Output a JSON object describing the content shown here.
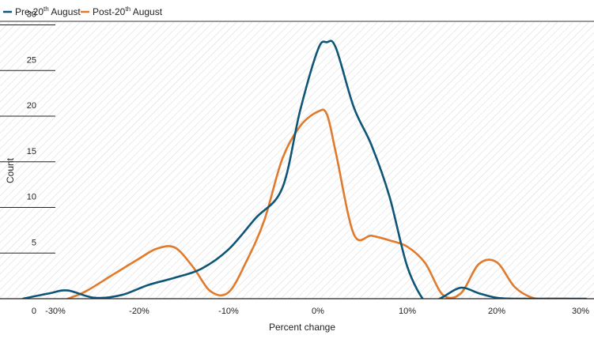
{
  "chart_data": {
    "type": "line",
    "title": "",
    "xlabel": "Percent change",
    "ylabel": "Count",
    "xlim": [
      -30,
      30
    ],
    "ylim": [
      0,
      30
    ],
    "x_ticks": [
      "-30%",
      "-20%",
      "-10%",
      "0%",
      "10%",
      "20%",
      "30%"
    ],
    "y_ticks": [
      "0",
      "5",
      "10",
      "15",
      "20",
      "25",
      "30"
    ],
    "legend_position": "top-left",
    "grid": false,
    "series": [
      {
        "name": "Pre-20th August",
        "legend_main": "Pre-20",
        "legend_sup": "th",
        "legend_rest": " August",
        "color": "#0e5577",
        "x": [
          -33,
          -30,
          -28,
          -25,
          -22,
          -19,
          -16,
          -13,
          -10,
          -7,
          -4,
          -2,
          0,
          1,
          2,
          4,
          6,
          8,
          10,
          12,
          13,
          14,
          16,
          18,
          20,
          22,
          25,
          30
        ],
        "y": [
          0,
          0.6,
          0.9,
          0.1,
          0.4,
          1.5,
          2.3,
          3.3,
          5.4,
          8.8,
          12.1,
          20.6,
          27.3,
          28.1,
          27.5,
          21.0,
          16.8,
          11.2,
          3.5,
          -0.4,
          -0.3,
          0.2,
          1.2,
          0.6,
          0.1,
          0,
          0,
          0
        ]
      },
      {
        "name": "Post-20th August",
        "legend_main": "Post-20",
        "legend_sup": "th",
        "legend_rest": " August",
        "color": "#e07a2c",
        "x": [
          -28,
          -26,
          -23,
          -20,
          -18,
          -16,
          -14,
          -12,
          -10,
          -8,
          -6,
          -4,
          -2,
          0,
          1,
          2,
          4,
          6,
          8,
          10,
          12,
          14,
          16,
          18,
          20,
          22,
          24,
          26,
          28
        ],
        "y": [
          0,
          0.8,
          2.6,
          4.4,
          5.5,
          5.6,
          3.5,
          0.8,
          0.7,
          4.1,
          8.6,
          15.3,
          18.9,
          20.5,
          20.2,
          16.0,
          7.1,
          6.9,
          6.4,
          5.7,
          3.9,
          0.4,
          0.6,
          3.8,
          4.0,
          1.3,
          0.1,
          0,
          0
        ]
      }
    ]
  }
}
